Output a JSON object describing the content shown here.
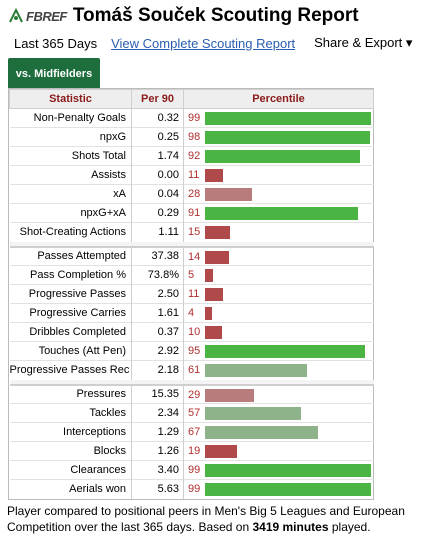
{
  "header": {
    "logo_text": "FBREF",
    "title": "Tomáš Souček Scouting Report"
  },
  "subbar": {
    "period": "Last 365 Days",
    "link": "View Complete Scouting Report",
    "share": "Share & Export ▾"
  },
  "tab": {
    "label": "vs. Midfielders"
  },
  "table": {
    "headers": [
      "Statistic",
      "Per 90",
      "Percentile"
    ],
    "groups": [
      [
        {
          "stat": "Non-Penalty Goals",
          "per90": "0.32",
          "pct": 99
        },
        {
          "stat": "npxG",
          "per90": "0.25",
          "pct": 98
        },
        {
          "stat": "Shots Total",
          "per90": "1.74",
          "pct": 92
        },
        {
          "stat": "Assists",
          "per90": "0.00",
          "pct": 11
        },
        {
          "stat": "xA",
          "per90": "0.04",
          "pct": 28
        },
        {
          "stat": "npxG+xA",
          "per90": "0.29",
          "pct": 91
        },
        {
          "stat": "Shot-Creating Actions",
          "per90": "1.11",
          "pct": 15
        }
      ],
      [
        {
          "stat": "Passes Attempted",
          "per90": "37.38",
          "pct": 14
        },
        {
          "stat": "Pass Completion %",
          "per90": "73.8%",
          "pct": 5
        },
        {
          "stat": "Progressive Passes",
          "per90": "2.50",
          "pct": 11
        },
        {
          "stat": "Progressive Carries",
          "per90": "1.61",
          "pct": 4
        },
        {
          "stat": "Dribbles Completed",
          "per90": "0.37",
          "pct": 10
        },
        {
          "stat": "Touches (Att Pen)",
          "per90": "2.92",
          "pct": 95
        },
        {
          "stat": "Progressive Passes Rec",
          "per90": "2.18",
          "pct": 61
        }
      ],
      [
        {
          "stat": "Pressures",
          "per90": "15.35",
          "pct": 29
        },
        {
          "stat": "Tackles",
          "per90": "2.34",
          "pct": 57
        },
        {
          "stat": "Interceptions",
          "per90": "1.29",
          "pct": 67
        },
        {
          "stat": "Blocks",
          "per90": "1.26",
          "pct": 19
        },
        {
          "stat": "Clearances",
          "per90": "3.40",
          "pct": 99
        },
        {
          "stat": "Aerials won",
          "per90": "5.63",
          "pct": 99
        }
      ]
    ]
  },
  "colors": {
    "high": "#4bb543",
    "mid": "#8eb28a",
    "midlow": "#b87c7c",
    "low": "#b04a4a",
    "header_text": "#8b1b1b",
    "tab_bg": "#1d6e3c",
    "link": "#2a5db0"
  },
  "footer": {
    "text_before": "Player compared to positional peers in Men's Big 5 Leagues and European Competition over the last 365 days. Based on ",
    "minutes": "3419 minutes",
    "text_after": " played."
  }
}
